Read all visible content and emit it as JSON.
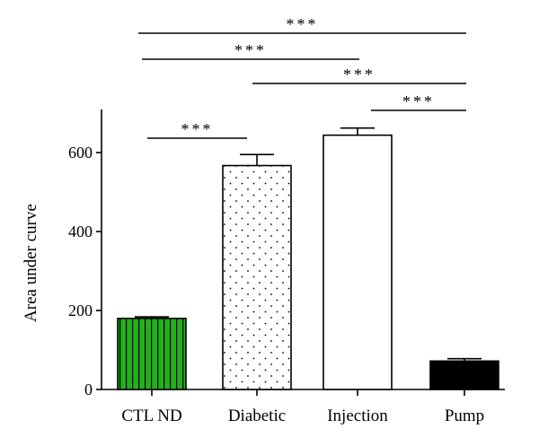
{
  "chart_data": {
    "type": "bar",
    "categories": [
      "CTL ND",
      "Diabetic",
      "Injection",
      "Pump"
    ],
    "values": [
      180,
      567,
      644,
      72
    ],
    "errors": [
      4,
      28,
      18,
      6
    ],
    "ylabel": "Area under curve",
    "xlabel": "",
    "ylim": [
      0,
      700
    ],
    "yticks": [
      "0",
      "200",
      "400",
      "600"
    ],
    "bar_styles": [
      {
        "pattern": "vertical-stripes",
        "fill": "#22b01c",
        "stroke": "#000000"
      },
      {
        "pattern": "dots",
        "fill": "#ffffff",
        "stroke": "#000000"
      },
      {
        "pattern": "none",
        "fill": "#ffffff",
        "stroke": "#000000"
      },
      {
        "pattern": "none",
        "fill": "#000000",
        "stroke": "#000000"
      }
    ],
    "significance": [
      {
        "from": 0,
        "to": 3,
        "label": "***"
      },
      {
        "from": 0,
        "to": 2,
        "label": "***"
      },
      {
        "from": 1,
        "to": 3,
        "label": "***"
      },
      {
        "from": 2,
        "to": 3,
        "label": "***"
      },
      {
        "from": 0,
        "to": 1,
        "label": "***"
      }
    ],
    "grid": false,
    "legend": "none"
  }
}
